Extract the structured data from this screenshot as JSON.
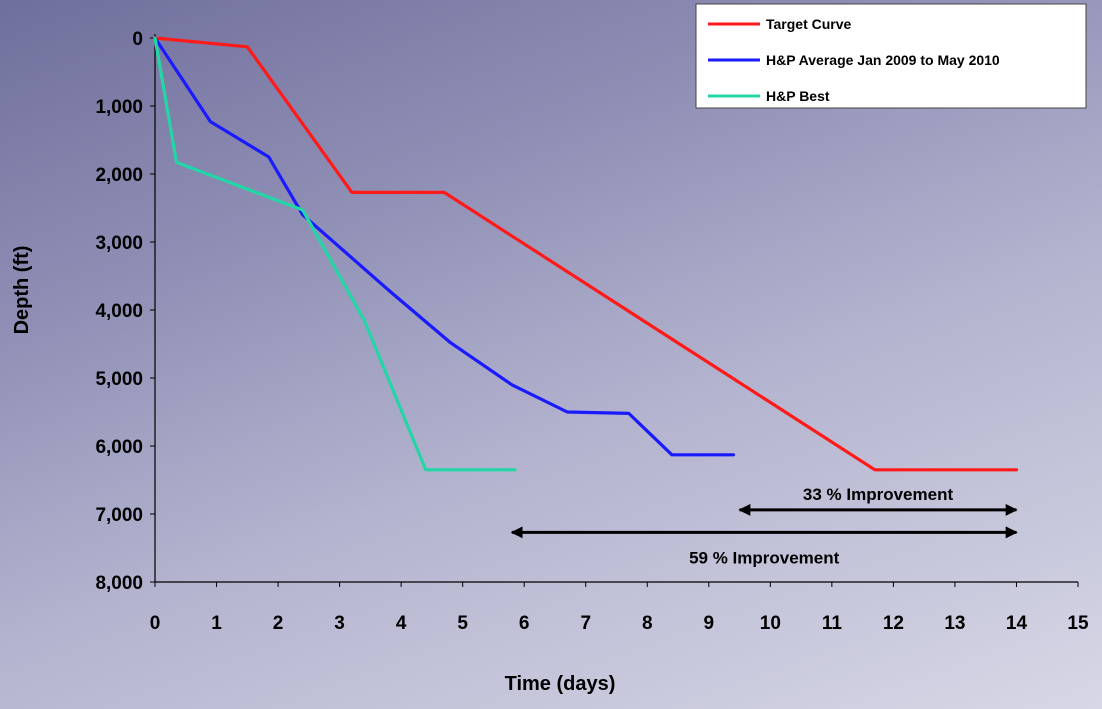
{
  "chart_data": {
    "type": "line",
    "title": "",
    "xlabel": "Time (days)",
    "ylabel": "Depth (ft)",
    "xlim": [
      0,
      15
    ],
    "ylim": [
      8000,
      0
    ],
    "y_inverted": true,
    "grid": false,
    "legend_position": "top-right",
    "x_ticks": [
      "0",
      "1",
      "2",
      "3",
      "4",
      "5",
      "6",
      "7",
      "8",
      "9",
      "10",
      "11",
      "12",
      "13",
      "14",
      "15"
    ],
    "y_ticks": [
      "0",
      "1,000",
      "2,000",
      "3,000",
      "4,000",
      "5,000",
      "6,000",
      "7,000",
      "8,000"
    ],
    "series": [
      {
        "name": "Target Curve",
        "color": "#ff1a1a",
        "x": [
          0,
          1.5,
          3.2,
          4.7,
          11.7,
          14.0
        ],
        "y": [
          0,
          130,
          2270,
          2270,
          6350,
          6350
        ]
      },
      {
        "name": "H&P Average Jan 2009 to May 2010",
        "color": "#1a1aff",
        "x": [
          0,
          0.9,
          1.85,
          2.4,
          3.85,
          4.8,
          5.8,
          6.7,
          7.7,
          8.4,
          9.4
        ],
        "y": [
          0,
          1230,
          1750,
          2600,
          3750,
          4480,
          5100,
          5500,
          5520,
          6130,
          6130
        ]
      },
      {
        "name": "H&P Best",
        "color": "#22d6a6",
        "x": [
          0,
          0.35,
          2.4,
          3.4,
          4.4,
          5.85
        ],
        "y": [
          0,
          1830,
          2530,
          4150,
          6350,
          6350
        ]
      }
    ],
    "annotations": [
      {
        "text": "33 % Improvement",
        "x_start": 9.5,
        "x_end": 14.0,
        "y": 6940
      },
      {
        "text": "59 % Improvement",
        "x_start": 5.8,
        "x_end": 14.0,
        "y": 7270
      }
    ]
  }
}
